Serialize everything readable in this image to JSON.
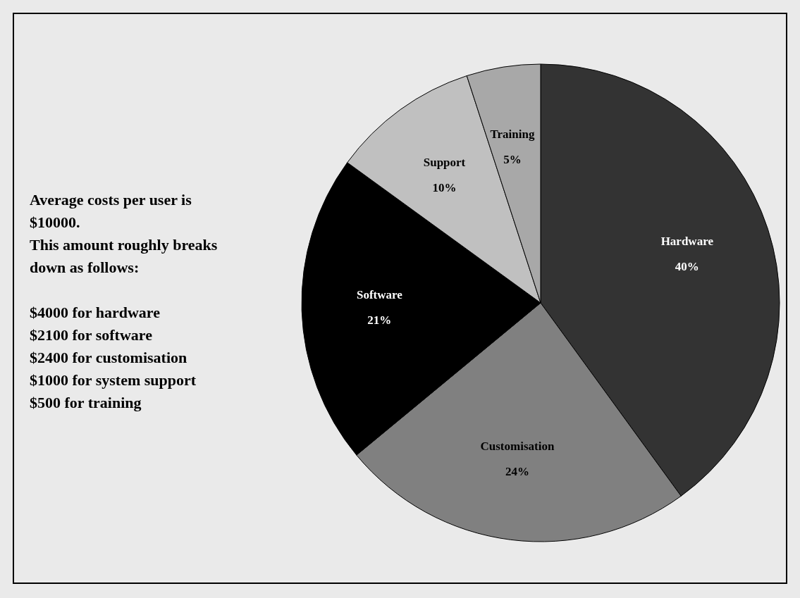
{
  "chart_data": {
    "type": "pie",
    "categories": [
      "Hardware",
      "Customisation",
      "Software",
      "Support",
      "Training"
    ],
    "values": [
      40,
      24,
      21,
      10,
      5
    ],
    "colors": [
      "#333333",
      "#808080",
      "#000000",
      "#c0c0c0",
      "#a8a8a8"
    ],
    "value_labels": [
      "40%",
      "24%",
      "21%",
      "10%",
      "5%"
    ],
    "legend": false,
    "annotations": [
      "Average costs per user is $10000.\nThis amount roughly breaks down as follows:",
      "$4000 for hardware\n$2100 for software\n$2400 for customisation\n$1000 for system support\n$500 for training"
    ]
  }
}
